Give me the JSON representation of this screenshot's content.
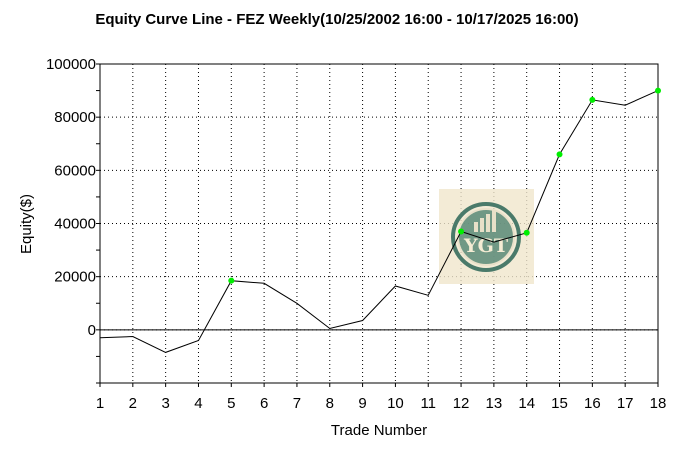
{
  "chart_data": {
    "type": "line",
    "title": "Equity Curve Line - FEZ Weekly(10/25/2002 16:00 - 10/17/2025 16:00)",
    "xlabel": "Trade Number",
    "ylabel": "Equity($)",
    "x": [
      1,
      2,
      3,
      4,
      5,
      6,
      7,
      8,
      9,
      10,
      11,
      12,
      13,
      14,
      15,
      16,
      17,
      18
    ],
    "series": [
      {
        "values": [
          -3000,
          -2500,
          -8500,
          -4000,
          18500,
          17500,
          10000,
          500,
          3500,
          16500,
          13000,
          37000,
          33000,
          36500,
          66000,
          86500,
          84500,
          90000
        ],
        "new_high_markers": [
          5,
          12,
          14,
          15,
          16,
          18
        ],
        "line_color": "#000000",
        "marker_color": "#00ee00"
      }
    ],
    "xlim": [
      1,
      18
    ],
    "ylim": [
      -20000,
      100000
    ],
    "y_ticks": [
      0,
      20000,
      40000,
      60000,
      80000,
      100000
    ],
    "y_tick_labels": [
      "0",
      "20000",
      "40000",
      "60000",
      "80000",
      "100000"
    ],
    "x_ticks": [
      1,
      2,
      3,
      4,
      5,
      6,
      7,
      8,
      9,
      10,
      11,
      12,
      13,
      14,
      15,
      16,
      17,
      18
    ],
    "x_tick_labels": [
      "1",
      "2",
      "3",
      "4",
      "5",
      "6",
      "7",
      "8",
      "9",
      "10",
      "11",
      "12",
      "13",
      "14",
      "15",
      "16",
      "17",
      "18"
    ],
    "grid": true,
    "zero_line": true
  },
  "watermark": {
    "text": "YGT",
    "icon": "ygt-logo-icon",
    "background_color": "#f0e6cc",
    "ring_color": "#4a7a6a"
  },
  "colors": {
    "plot_border": "#000000",
    "grid": "#000000",
    "line": "#000000",
    "marker": "#00ee00"
  }
}
